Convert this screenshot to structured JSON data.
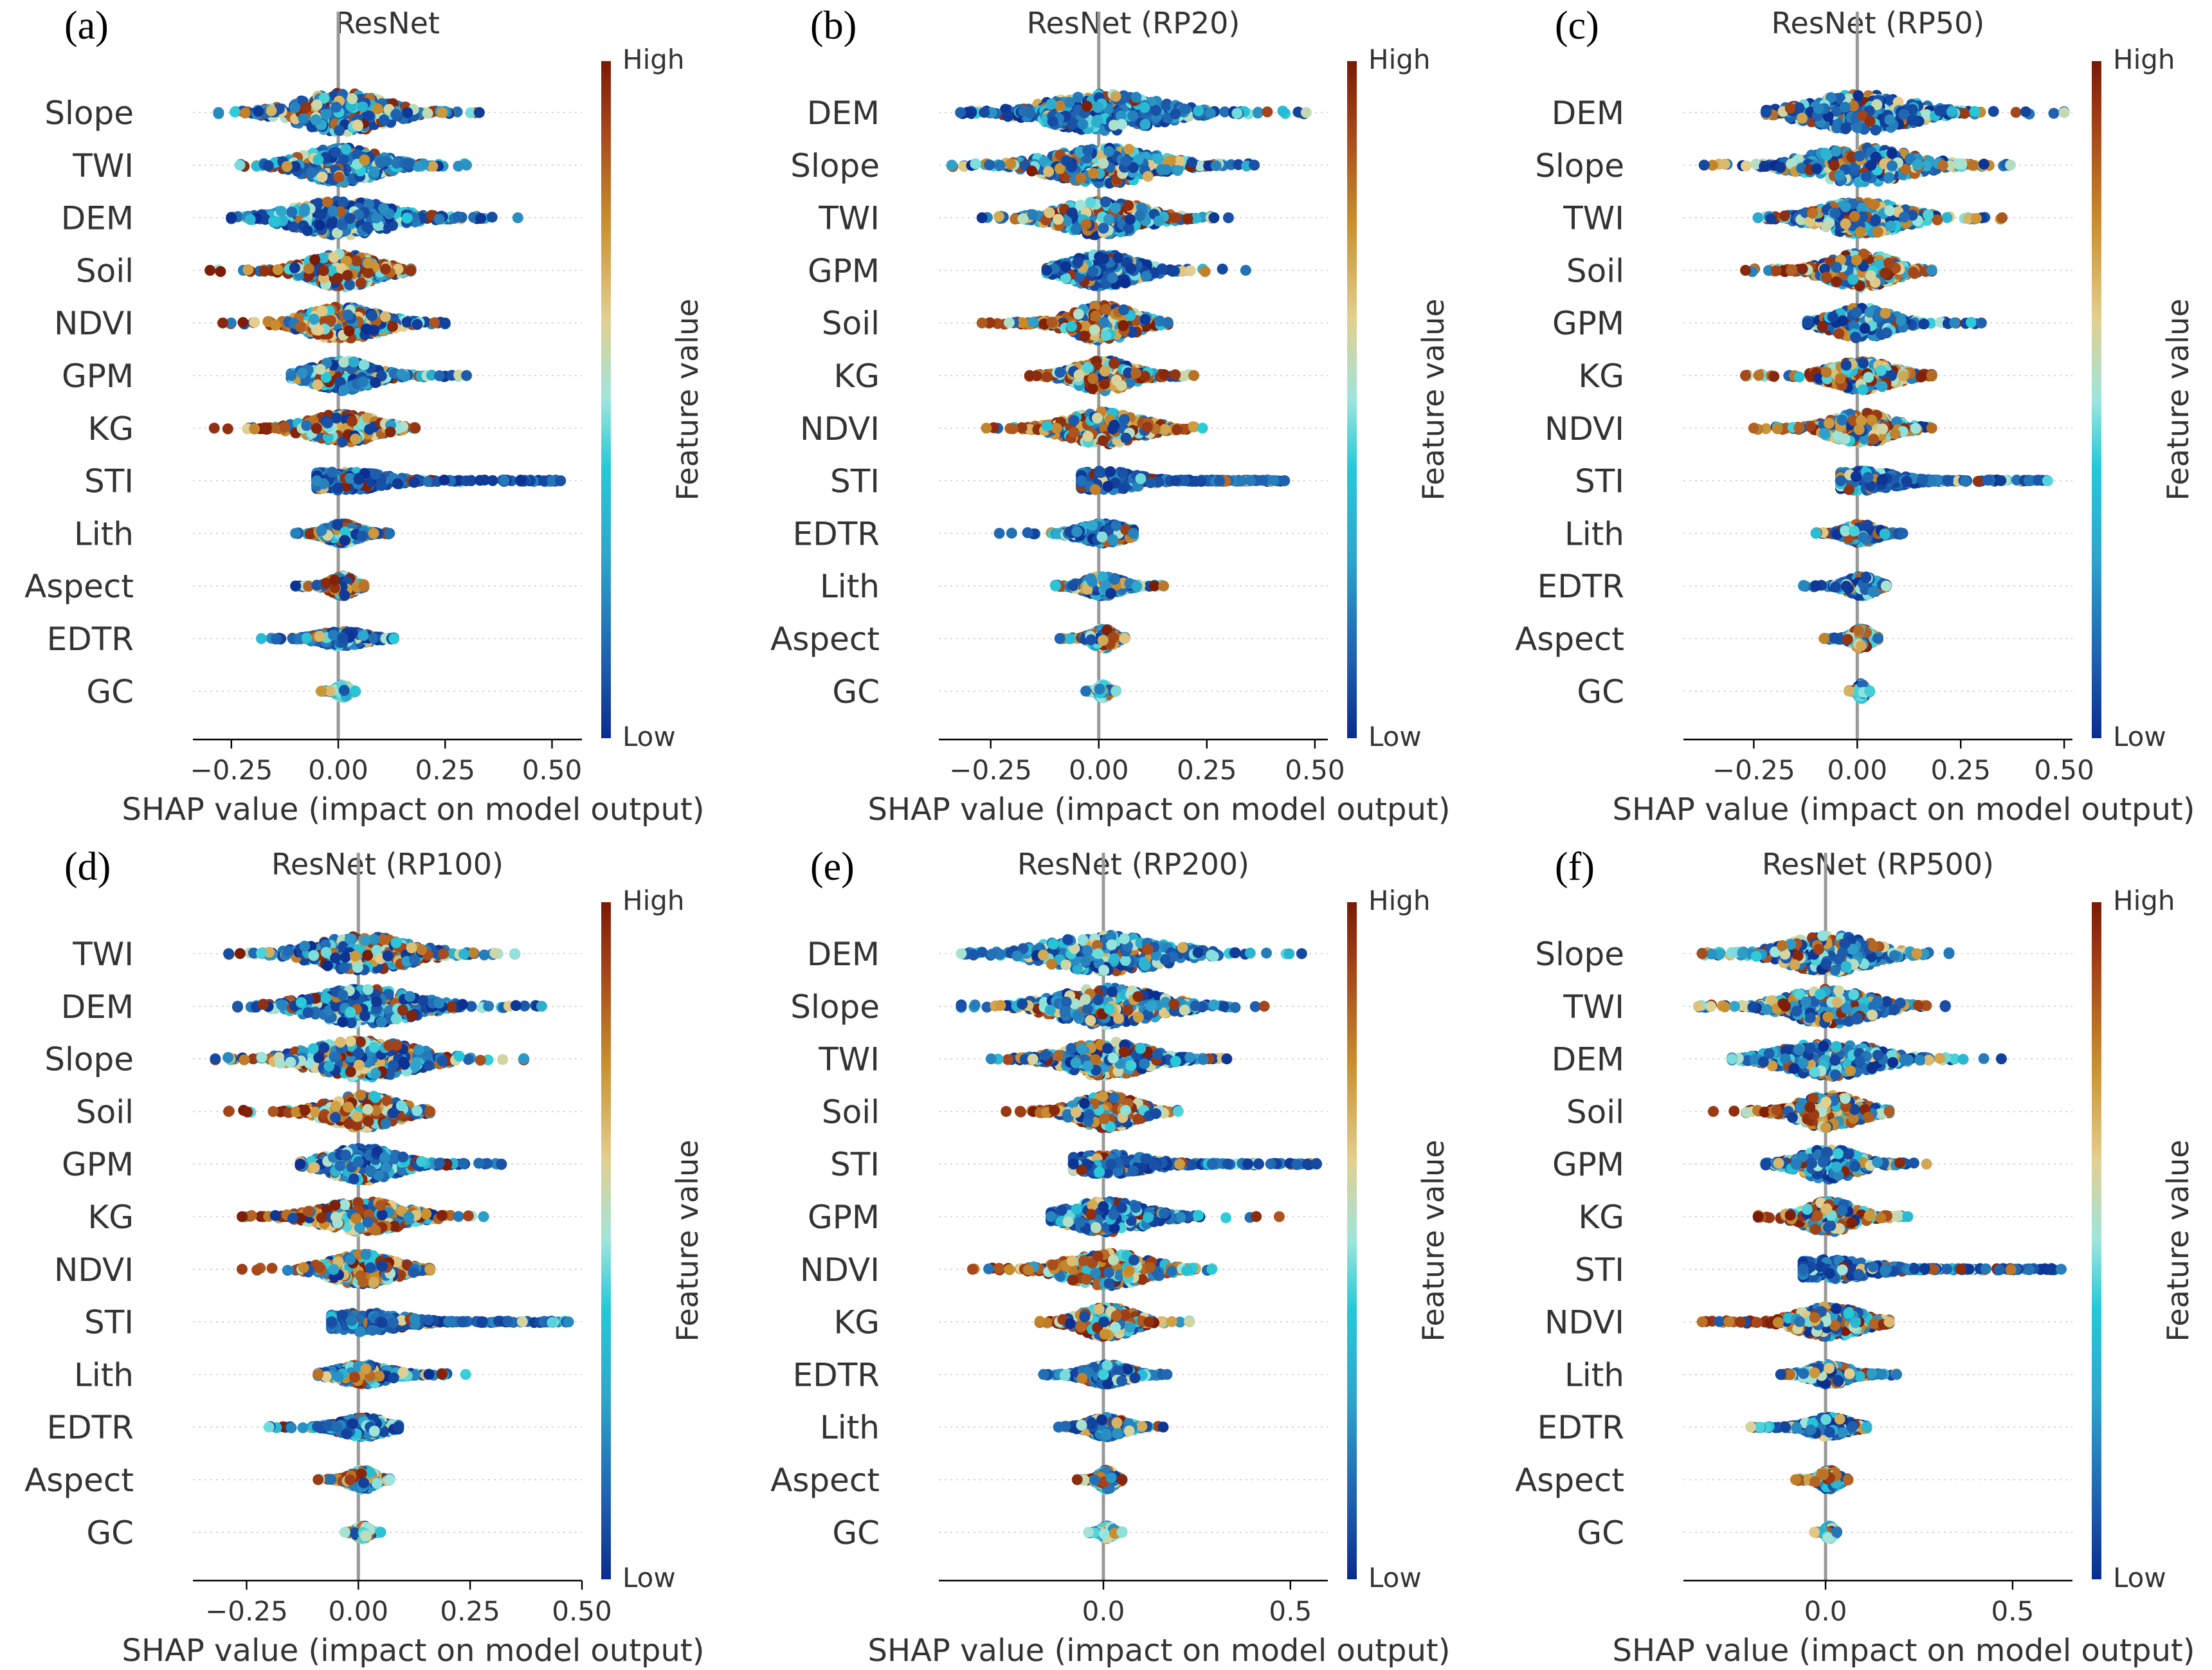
{
  "chart_data": [
    {
      "type": "scatter",
      "label": "(a)",
      "title": "ResNet",
      "xlabel": "SHAP value (impact on model output)",
      "xlim": [
        -0.34,
        0.57
      ],
      "xticks": [
        -0.25,
        0.0,
        0.25,
        0.5
      ],
      "xtick_labels": [
        "−0.25",
        "0.00",
        "0.25",
        "0.50"
      ],
      "colorbar": {
        "label": "Feature value",
        "high": "High",
        "low": "Low"
      },
      "features": [
        {
          "name": "Slope",
          "min": -0.28,
          "max": 0.33,
          "width": 0.9,
          "profile": "mixed"
        },
        {
          "name": "TWI",
          "min": -0.23,
          "max": 0.3,
          "width": 0.8,
          "profile": "mixed"
        },
        {
          "name": "DEM",
          "min": -0.25,
          "max": 0.42,
          "width": 0.8,
          "profile": "lowblue"
        },
        {
          "name": "Soil",
          "min": -0.3,
          "max": 0.17,
          "width": 0.75,
          "profile": "warm"
        },
        {
          "name": "NDVI",
          "min": -0.27,
          "max": 0.25,
          "width": 0.75,
          "profile": "warm"
        },
        {
          "name": "GPM",
          "min": -0.11,
          "max": 0.3,
          "width": 0.7,
          "profile": "lowblue"
        },
        {
          "name": "KG",
          "min": -0.29,
          "max": 0.18,
          "width": 0.65,
          "profile": "warm"
        },
        {
          "name": "STI",
          "min": -0.05,
          "max": 0.52,
          "width": 0.45,
          "profile": "sti"
        },
        {
          "name": "Lith",
          "min": -0.1,
          "max": 0.12,
          "width": 0.45,
          "profile": "mixed"
        },
        {
          "name": "Aspect",
          "min": -0.1,
          "max": 0.06,
          "width": 0.45,
          "profile": "warm"
        },
        {
          "name": "EDTR",
          "min": -0.18,
          "max": 0.13,
          "width": 0.35,
          "profile": "lowblue"
        },
        {
          "name": "GC",
          "min": -0.04,
          "max": 0.04,
          "width": 0.3,
          "profile": "cyan"
        }
      ]
    },
    {
      "type": "scatter",
      "label": "(b)",
      "title": "ResNet (RP20)",
      "xlabel": "SHAP value (impact on model output)",
      "xlim": [
        -0.37,
        0.53
      ],
      "xticks": [
        -0.25,
        0.0,
        0.25,
        0.5
      ],
      "xtick_labels": [
        "−0.25",
        "0.00",
        "0.25",
        "0.50"
      ],
      "colorbar": {
        "label": "Feature value",
        "high": "High",
        "low": "Low"
      },
      "features": [
        {
          "name": "DEM",
          "min": -0.32,
          "max": 0.48,
          "width": 0.85,
          "profile": "lowblue"
        },
        {
          "name": "Slope",
          "min": -0.34,
          "max": 0.36,
          "width": 0.85,
          "profile": "mixed"
        },
        {
          "name": "TWI",
          "min": -0.27,
          "max": 0.3,
          "width": 0.8,
          "profile": "mixed"
        },
        {
          "name": "GPM",
          "min": -0.12,
          "max": 0.34,
          "width": 0.75,
          "profile": "lowblue"
        },
        {
          "name": "Soil",
          "min": -0.27,
          "max": 0.16,
          "width": 0.8,
          "profile": "warm"
        },
        {
          "name": "KG",
          "min": -0.16,
          "max": 0.22,
          "width": 0.7,
          "profile": "warm"
        },
        {
          "name": "NDVI",
          "min": -0.26,
          "max": 0.24,
          "width": 0.75,
          "profile": "warm"
        },
        {
          "name": "STI",
          "min": -0.04,
          "max": 0.43,
          "width": 0.45,
          "profile": "sti"
        },
        {
          "name": "EDTR",
          "min": -0.23,
          "max": 0.08,
          "width": 0.45,
          "profile": "lowblue"
        },
        {
          "name": "Lith",
          "min": -0.1,
          "max": 0.15,
          "width": 0.45,
          "profile": "mixed"
        },
        {
          "name": "Aspect",
          "min": -0.09,
          "max": 0.06,
          "width": 0.45,
          "profile": "warm"
        },
        {
          "name": "GC",
          "min": -0.03,
          "max": 0.04,
          "width": 0.3,
          "profile": "cyan"
        }
      ]
    },
    {
      "type": "scatter",
      "label": "(c)",
      "title": "ResNet (RP50)",
      "xlabel": "SHAP value (impact on model output)",
      "xlim": [
        -0.42,
        0.52
      ],
      "xticks": [
        -0.25,
        0.0,
        0.25,
        0.5
      ],
      "xtick_labels": [
        "−0.25",
        "0.00",
        "0.25",
        "0.50"
      ],
      "colorbar": {
        "label": "Feature value",
        "high": "High",
        "low": "Low"
      },
      "features": [
        {
          "name": "DEM",
          "min": -0.22,
          "max": 0.5,
          "width": 0.85,
          "profile": "lowblue"
        },
        {
          "name": "Slope",
          "min": -0.37,
          "max": 0.37,
          "width": 0.8,
          "profile": "mixed"
        },
        {
          "name": "TWI",
          "min": -0.24,
          "max": 0.35,
          "width": 0.75,
          "profile": "mixed"
        },
        {
          "name": "Soil",
          "min": -0.27,
          "max": 0.18,
          "width": 0.8,
          "profile": "warm"
        },
        {
          "name": "GPM",
          "min": -0.12,
          "max": 0.3,
          "width": 0.7,
          "profile": "lowblue"
        },
        {
          "name": "KG",
          "min": -0.27,
          "max": 0.18,
          "width": 0.65,
          "profile": "warm"
        },
        {
          "name": "NDVI",
          "min": -0.25,
          "max": 0.18,
          "width": 0.7,
          "profile": "warm"
        },
        {
          "name": "STI",
          "min": -0.04,
          "max": 0.46,
          "width": 0.45,
          "profile": "sti"
        },
        {
          "name": "Lith",
          "min": -0.1,
          "max": 0.11,
          "width": 0.45,
          "profile": "mixed"
        },
        {
          "name": "EDTR",
          "min": -0.13,
          "max": 0.07,
          "width": 0.45,
          "profile": "lowblue"
        },
        {
          "name": "Aspect",
          "min": -0.08,
          "max": 0.05,
          "width": 0.45,
          "profile": "warm"
        },
        {
          "name": "GC",
          "min": -0.02,
          "max": 0.03,
          "width": 0.35,
          "profile": "cyan"
        }
      ]
    },
    {
      "type": "scatter",
      "label": "(d)",
      "title": "ResNet (RP100)",
      "xlabel": "SHAP value (impact on model output)",
      "xlim": [
        -0.37,
        0.5
      ],
      "xticks": [
        -0.25,
        0.0,
        0.25,
        0.5
      ],
      "xtick_labels": [
        "−0.25",
        "0.00",
        "0.25",
        "0.50"
      ],
      "colorbar": {
        "label": "Feature value",
        "high": "High",
        "low": "Low"
      },
      "features": [
        {
          "name": "TWI",
          "min": -0.29,
          "max": 0.35,
          "width": 0.8,
          "profile": "mixed"
        },
        {
          "name": "DEM",
          "min": -0.27,
          "max": 0.41,
          "width": 0.8,
          "profile": "lowblue"
        },
        {
          "name": "Slope",
          "min": -0.32,
          "max": 0.37,
          "width": 0.85,
          "profile": "mixed"
        },
        {
          "name": "Soil",
          "min": -0.29,
          "max": 0.16,
          "width": 0.75,
          "profile": "warm"
        },
        {
          "name": "GPM",
          "min": -0.13,
          "max": 0.32,
          "width": 0.75,
          "profile": "lowblue"
        },
        {
          "name": "KG",
          "min": -0.26,
          "max": 0.28,
          "width": 0.7,
          "profile": "warm"
        },
        {
          "name": "NDVI",
          "min": -0.26,
          "max": 0.16,
          "width": 0.7,
          "profile": "warm"
        },
        {
          "name": "STI",
          "min": -0.06,
          "max": 0.47,
          "width": 0.45,
          "profile": "sti"
        },
        {
          "name": "Lith",
          "min": -0.09,
          "max": 0.24,
          "width": 0.45,
          "profile": "mixed"
        },
        {
          "name": "EDTR",
          "min": -0.2,
          "max": 0.09,
          "width": 0.45,
          "profile": "lowblue"
        },
        {
          "name": "Aspect",
          "min": -0.09,
          "max": 0.07,
          "width": 0.45,
          "profile": "warm"
        },
        {
          "name": "GC",
          "min": -0.03,
          "max": 0.05,
          "width": 0.3,
          "profile": "cyan"
        }
      ]
    },
    {
      "type": "scatter",
      "label": "(e)",
      "title": "ResNet (RP200)",
      "xlabel": "SHAP value (impact on model output)",
      "xlim": [
        -0.44,
        0.6
      ],
      "xticks": [
        0.0,
        0.5
      ],
      "xtick_labels": [
        "0.0",
        "0.5"
      ],
      "colorbar": {
        "label": "Feature value",
        "high": "High",
        "low": "Low"
      },
      "features": [
        {
          "name": "DEM",
          "min": -0.38,
          "max": 0.53,
          "width": 0.85,
          "profile": "lowblue"
        },
        {
          "name": "Slope",
          "min": -0.38,
          "max": 0.43,
          "width": 0.85,
          "profile": "mixed"
        },
        {
          "name": "TWI",
          "min": -0.3,
          "max": 0.33,
          "width": 0.8,
          "profile": "mixed"
        },
        {
          "name": "Soil",
          "min": -0.26,
          "max": 0.2,
          "width": 0.75,
          "profile": "warm"
        },
        {
          "name": "STI",
          "min": -0.08,
          "max": 0.57,
          "width": 0.45,
          "profile": "sti"
        },
        {
          "name": "GPM",
          "min": -0.14,
          "max": 0.47,
          "width": 0.7,
          "profile": "lowblue"
        },
        {
          "name": "NDVI",
          "min": -0.35,
          "max": 0.29,
          "width": 0.75,
          "profile": "warm"
        },
        {
          "name": "KG",
          "min": -0.17,
          "max": 0.23,
          "width": 0.7,
          "profile": "warm"
        },
        {
          "name": "EDTR",
          "min": -0.16,
          "max": 0.17,
          "width": 0.45,
          "profile": "lowblue"
        },
        {
          "name": "Lith",
          "min": -0.12,
          "max": 0.16,
          "width": 0.45,
          "profile": "mixed"
        },
        {
          "name": "Aspect",
          "min": -0.07,
          "max": 0.05,
          "width": 0.45,
          "profile": "warm"
        },
        {
          "name": "GC",
          "min": -0.04,
          "max": 0.05,
          "width": 0.3,
          "profile": "cyan"
        }
      ]
    },
    {
      "type": "scatter",
      "label": "(f)",
      "title": "ResNet (RP500)",
      "xlabel": "SHAP value (impact on model output)",
      "xlim": [
        -0.38,
        0.66
      ],
      "xticks": [
        0.0,
        0.5
      ],
      "xtick_labels": [
        "0.0",
        "0.5"
      ],
      "colorbar": {
        "label": "Feature value",
        "high": "High",
        "low": "Low"
      },
      "features": [
        {
          "name": "Slope",
          "min": -0.33,
          "max": 0.33,
          "width": 0.85,
          "profile": "mixed"
        },
        {
          "name": "TWI",
          "min": -0.34,
          "max": 0.32,
          "width": 0.8,
          "profile": "mixed"
        },
        {
          "name": "DEM",
          "min": -0.25,
          "max": 0.47,
          "width": 0.8,
          "profile": "lowblue"
        },
        {
          "name": "Soil",
          "min": -0.3,
          "max": 0.17,
          "width": 0.75,
          "profile": "warm"
        },
        {
          "name": "GPM",
          "min": -0.16,
          "max": 0.27,
          "width": 0.7,
          "profile": "lowblue"
        },
        {
          "name": "KG",
          "min": -0.18,
          "max": 0.22,
          "width": 0.7,
          "profile": "warm"
        },
        {
          "name": "STI",
          "min": -0.06,
          "max": 0.63,
          "width": 0.45,
          "profile": "sti"
        },
        {
          "name": "NDVI",
          "min": -0.33,
          "max": 0.17,
          "width": 0.7,
          "profile": "warm"
        },
        {
          "name": "Lith",
          "min": -0.12,
          "max": 0.19,
          "width": 0.45,
          "profile": "mixed"
        },
        {
          "name": "EDTR",
          "min": -0.2,
          "max": 0.11,
          "width": 0.45,
          "profile": "lowblue"
        },
        {
          "name": "Aspect",
          "min": -0.08,
          "max": 0.06,
          "width": 0.45,
          "profile": "warm"
        },
        {
          "name": "GC",
          "min": -0.03,
          "max": 0.03,
          "width": 0.3,
          "profile": "cyan"
        }
      ]
    }
  ],
  "colormap": [
    "#0a2c8f",
    "#1f62b0",
    "#2fa6cc",
    "#26c9d8",
    "#9ee5dc",
    "#e3cf8f",
    "#c9902f",
    "#a4451a",
    "#7b1a06"
  ]
}
